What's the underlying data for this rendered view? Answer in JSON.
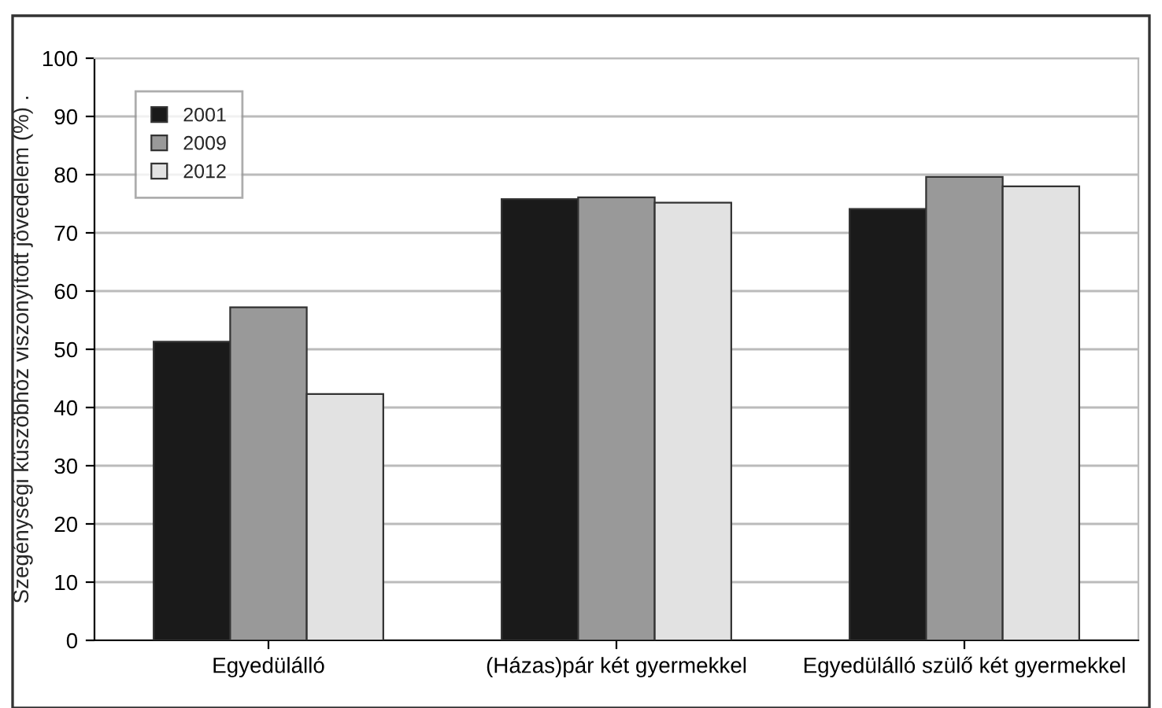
{
  "chart_data": {
    "type": "bar",
    "ylabel": "Szegénységi küszöbhöz viszonyított jövedelem (%) .",
    "categories": [
      "Egyedülálló",
      "(Házas)pár két gyermekkel",
      "Egyedülálló szülő két gyermekkel"
    ],
    "series": [
      {
        "name": "2001",
        "color": "#1a1a1a",
        "values": [
          51.3,
          75.8,
          74.1
        ]
      },
      {
        "name": "2009",
        "color": "#999999",
        "values": [
          57.2,
          76.1,
          79.6
        ]
      },
      {
        "name": "2012",
        "color": "#e2e2e2",
        "values": [
          42.3,
          75.2,
          78.0
        ]
      }
    ],
    "ylim": [
      0,
      100
    ],
    "yticks": [
      0,
      10,
      20,
      30,
      40,
      50,
      60,
      70,
      80,
      90,
      100
    ],
    "grid": "y",
    "legend": "top left"
  }
}
